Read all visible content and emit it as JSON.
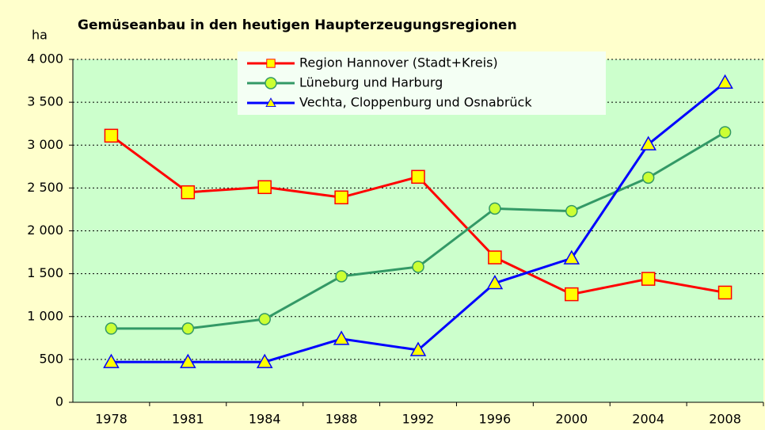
{
  "chart_data": {
    "type": "line",
    "title": "Gemüseanbau in den heutigen Haupterzeugungsregionen",
    "y_label": "ha",
    "categories": [
      "1978",
      "1981",
      "1984",
      "1988",
      "1992",
      "1996",
      "2000",
      "2004",
      "2008"
    ],
    "series": [
      {
        "name": "Region Hannover (Stadt+Kreis)",
        "color": "#ff0000",
        "marker": "square",
        "marker_fill": "#ffff00",
        "values": [
          3110,
          2450,
          2510,
          2390,
          2630,
          1690,
          1260,
          1440,
          1280
        ]
      },
      {
        "name": "Lüneburg und Harburg",
        "color": "#339966",
        "marker": "circle",
        "marker_fill": "#ccff33",
        "values": [
          860,
          860,
          970,
          1470,
          1580,
          2260,
          2230,
          2620,
          3150
        ]
      },
      {
        "name": "Vechta, Cloppenburg und Osnabrück",
        "color": "#0000ff",
        "marker": "triangle",
        "marker_fill": "#ffff00",
        "values": [
          470,
          470,
          470,
          740,
          610,
          1390,
          1680,
          3010,
          3730
        ]
      }
    ],
    "ylim": [
      0,
      4000
    ],
    "yticks": [
      0,
      500,
      {
        "value": 1000,
        "label": "1 000"
      },
      {
        "value": 1500,
        "label": "1 500"
      },
      {
        "value": 2000,
        "label": "2 000"
      },
      {
        "value": 2500,
        "label": "2 500"
      },
      {
        "value": 3000,
        "label": "3 000"
      },
      {
        "value": 3500,
        "label": "3 500"
      },
      {
        "value": 4000,
        "label": "4 000"
      }
    ],
    "grid": true,
    "legend": "top"
  }
}
